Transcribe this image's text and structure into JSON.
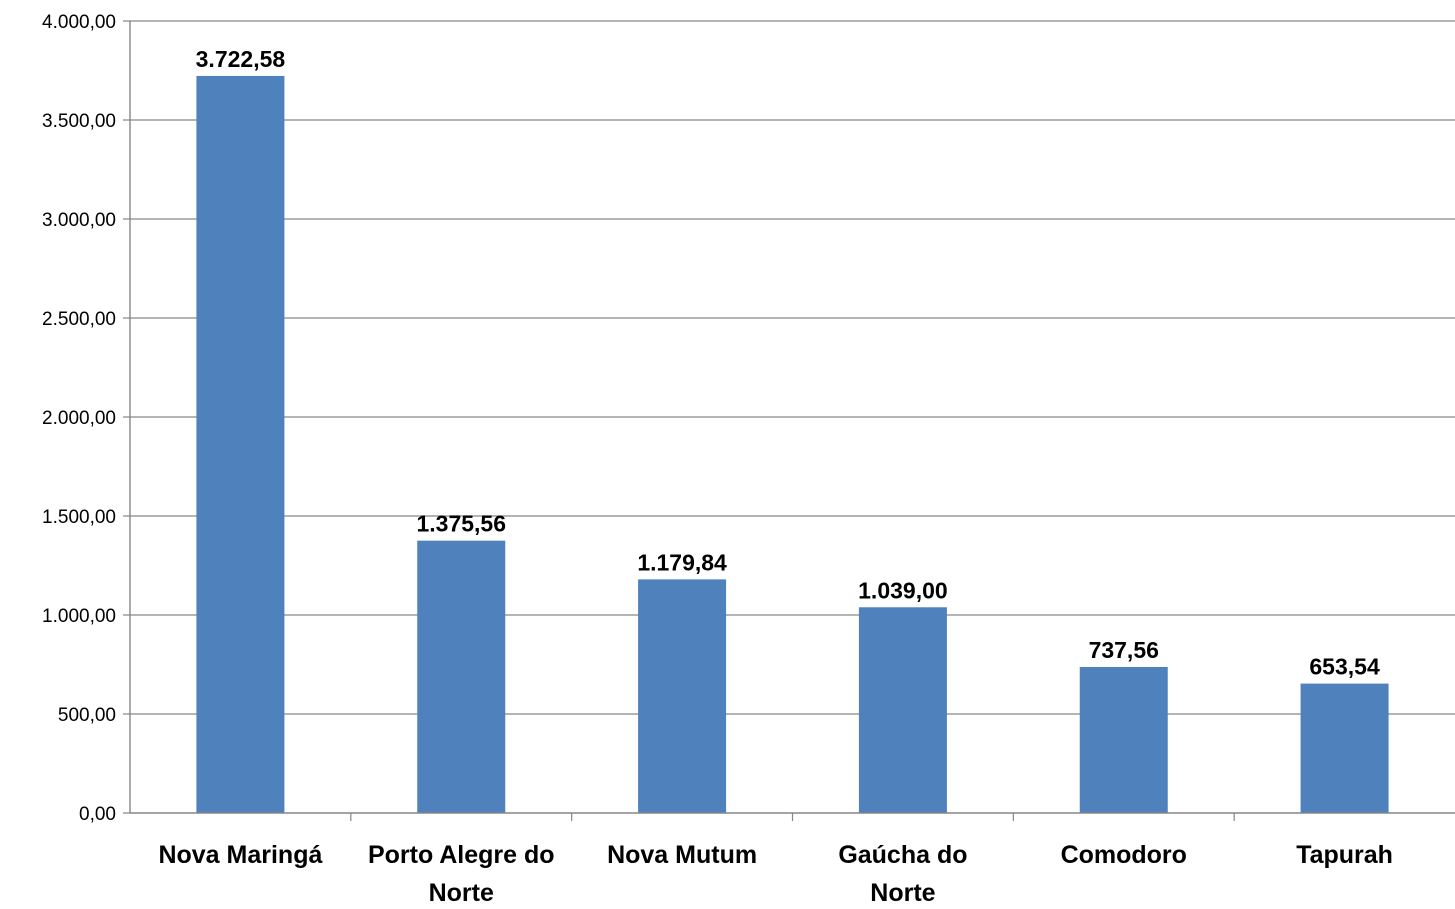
{
  "chart_data": {
    "type": "bar",
    "title": "",
    "xlabel": "",
    "ylabel": "",
    "categories": [
      [
        "Nova Maringá"
      ],
      [
        "Porto Alegre do",
        "Norte"
      ],
      [
        "Nova Mutum"
      ],
      [
        "Gaúcha do",
        "Norte"
      ],
      [
        "Comodoro"
      ],
      [
        "Tapurah"
      ]
    ],
    "values": [
      3722.58,
      1375.56,
      1179.84,
      1039.0,
      737.56,
      653.54
    ],
    "data_labels": [
      "3.722,58",
      "1.375,56",
      "1.179,84",
      "1.039,00",
      "737,56",
      "653,54"
    ],
    "ylim": [
      0,
      4000
    ],
    "yticks": [
      0,
      500,
      1000,
      1500,
      2000,
      2500,
      3000,
      3500,
      4000
    ],
    "ytick_labels": [
      "0,00",
      "500,00",
      "1.000,00",
      "1.500,00",
      "2.000,00",
      "2.500,00",
      "3.000,00",
      "3.500,00",
      "4.000,00"
    ],
    "grid": true,
    "legend": "none",
    "colors": {
      "bar": "#4F81BD",
      "grid": "#868686",
      "axis": "#868686",
      "text": "#000000"
    }
  }
}
